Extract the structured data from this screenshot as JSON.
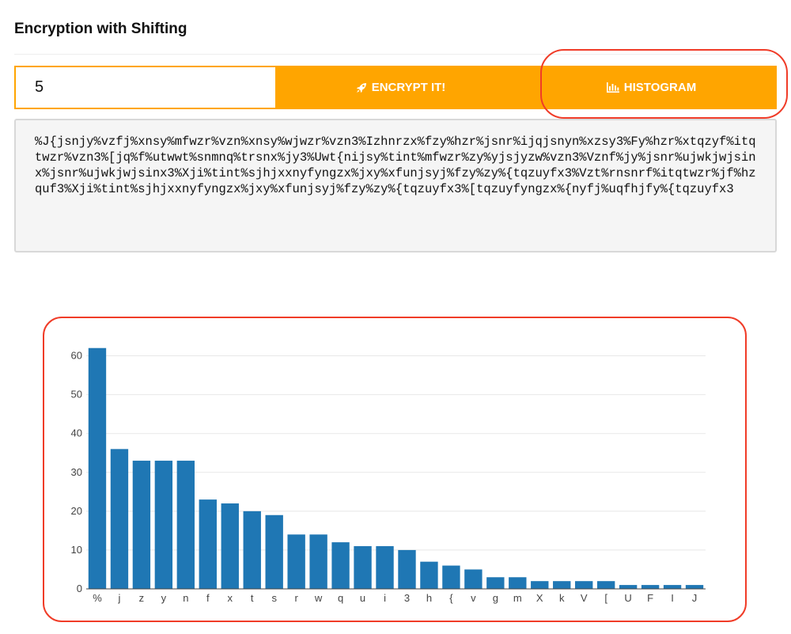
{
  "page": {
    "title": "Encryption with Shifting"
  },
  "controls": {
    "shift_value": "5",
    "encrypt_label": "ENCRYPT IT!",
    "histogram_label": "HISTOGRAM",
    "encrypt_icon": "rocket-icon",
    "histogram_icon": "bar-chart-icon"
  },
  "output": {
    "text": "%J{jsnjy%vzfj%xnsy%mfwzr%vzn%xnsy%wjwzr%vzn3%Izhnrzx%fzy%hzr%jsnr%ijqjsnyn%xzsy3%Fy%hzr%xtqzyf%itqtwzr%vzn3%[jq%f%utwwt%snmnq%trsnx%jy3%Uwt{nijsy%tint%mfwzr%zy%yjsjyzw%vzn3%Vznf%jy%jsnr%ujwkjwjsinx%jsnr%ujwkjwjsinx3%Xji%tint%sjhjxxnyfyngzx%jxy%xfunjsyj%fzy%zy%{tqzuyfx3%Vzt%rnsnrf%itqtwzr%jf%hzquf3%Xji%tint%sjhjxxnyfyngzx%jxy%xfunjsyj%fzy%zy%{tqzuyfx3%[tqzuyfyngzx%{nyfj%uqfhjfy%{tqzuyfx3"
  },
  "colors": {
    "accent": "#ffa500",
    "bar": "#1f77b4",
    "annotation": "#f03c28"
  },
  "chart_data": {
    "type": "bar",
    "categories": [
      "%",
      "j",
      "z",
      "y",
      "n",
      "f",
      "x",
      "t",
      "s",
      "r",
      "w",
      "q",
      "u",
      "i",
      "3",
      "h",
      "{",
      "v",
      "g",
      "m",
      "X",
      "k",
      "V",
      "[",
      "U",
      "F",
      "I",
      "J"
    ],
    "values": [
      62,
      36,
      33,
      33,
      33,
      23,
      22,
      20,
      19,
      14,
      14,
      12,
      11,
      11,
      10,
      7,
      6,
      5,
      3,
      3,
      2,
      2,
      2,
      2,
      1,
      1,
      1,
      1
    ],
    "yticks": [
      0,
      10,
      20,
      30,
      40,
      50,
      60
    ],
    "ylim": [
      0,
      65
    ],
    "grid": true,
    "title": "",
    "xlabel": "",
    "ylabel": ""
  }
}
